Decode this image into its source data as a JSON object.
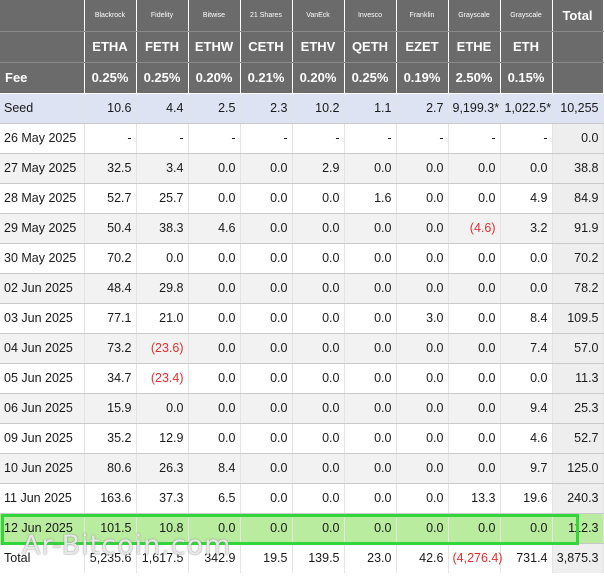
{
  "issuers": [
    "Blackrock",
    "Fidelity",
    "Bitwise",
    "21 Shares",
    "VanEck",
    "Invesco",
    "Franklin",
    "Grayscale",
    "Grayscale"
  ],
  "total_label": "Total",
  "tickers": [
    "ETHA",
    "FETH",
    "ETHW",
    "CETH",
    "ETHV",
    "QETH",
    "EZET",
    "ETHE",
    "ETH"
  ],
  "fee_label": "Fee",
  "fees": [
    "0.25%",
    "0.25%",
    "0.20%",
    "0.21%",
    "0.20%",
    "0.25%",
    "0.19%",
    "2.50%",
    "0.15%"
  ],
  "rows": [
    {
      "label": "Seed",
      "values": [
        "10.6",
        "4.4",
        "2.5",
        "2.3",
        "10.2",
        "1.1",
        "2.7",
        "9,199.3*",
        "1,022.5*"
      ],
      "total": "10,255",
      "neg": []
    },
    {
      "label": "26 May 2025",
      "values": [
        "-",
        "-",
        "-",
        "-",
        "-",
        "-",
        "-",
        "-",
        "-"
      ],
      "total": "0.0",
      "neg": []
    },
    {
      "label": "27 May 2025",
      "values": [
        "32.5",
        "3.4",
        "0.0",
        "0.0",
        "2.9",
        "0.0",
        "0.0",
        "0.0",
        "0.0"
      ],
      "total": "38.8",
      "neg": []
    },
    {
      "label": "28 May 2025",
      "values": [
        "52.7",
        "25.7",
        "0.0",
        "0.0",
        "0.0",
        "1.6",
        "0.0",
        "0.0",
        "4.9"
      ],
      "total": "84.9",
      "neg": []
    },
    {
      "label": "29 May 2025",
      "values": [
        "50.4",
        "38.3",
        "4.6",
        "0.0",
        "0.0",
        "0.0",
        "0.0",
        "(4.6)",
        "3.2"
      ],
      "total": "91.9",
      "neg": [
        7
      ]
    },
    {
      "label": "30 May 2025",
      "values": [
        "70.2",
        "0.0",
        "0.0",
        "0.0",
        "0.0",
        "0.0",
        "0.0",
        "0.0",
        "0.0"
      ],
      "total": "70.2",
      "neg": []
    },
    {
      "label": "02 Jun 2025",
      "values": [
        "48.4",
        "29.8",
        "0.0",
        "0.0",
        "0.0",
        "0.0",
        "0.0",
        "0.0",
        "0.0"
      ],
      "total": "78.2",
      "neg": []
    },
    {
      "label": "03 Jun 2025",
      "values": [
        "77.1",
        "21.0",
        "0.0",
        "0.0",
        "0.0",
        "0.0",
        "3.0",
        "0.0",
        "8.4"
      ],
      "total": "109.5",
      "neg": []
    },
    {
      "label": "04 Jun 2025",
      "values": [
        "73.2",
        "(23.6)",
        "0.0",
        "0.0",
        "0.0",
        "0.0",
        "0.0",
        "0.0",
        "7.4"
      ],
      "total": "57.0",
      "neg": [
        1
      ]
    },
    {
      "label": "05 Jun 2025",
      "values": [
        "34.7",
        "(23.4)",
        "0.0",
        "0.0",
        "0.0",
        "0.0",
        "0.0",
        "0.0",
        "0.0"
      ],
      "total": "11.3",
      "neg": [
        1
      ]
    },
    {
      "label": "06 Jun 2025",
      "values": [
        "15.9",
        "0.0",
        "0.0",
        "0.0",
        "0.0",
        "0.0",
        "0.0",
        "0.0",
        "9.4"
      ],
      "total": "25.3",
      "neg": []
    },
    {
      "label": "09 Jun 2025",
      "values": [
        "35.2",
        "12.9",
        "0.0",
        "0.0",
        "0.0",
        "0.0",
        "0.0",
        "0.0",
        "4.6"
      ],
      "total": "52.7",
      "neg": []
    },
    {
      "label": "10 Jun 2025",
      "values": [
        "80.6",
        "26.3",
        "8.4",
        "0.0",
        "0.0",
        "0.0",
        "0.0",
        "0.0",
        "9.7"
      ],
      "total": "125.0",
      "neg": []
    },
    {
      "label": "11 Jun 2025",
      "values": [
        "163.6",
        "37.3",
        "6.5",
        "0.0",
        "0.0",
        "0.0",
        "0.0",
        "13.3",
        "19.6"
      ],
      "total": "240.3",
      "neg": []
    },
    {
      "label": "12 Jun 2025",
      "values": [
        "101.5",
        "10.8",
        "0.0",
        "0.0",
        "0.0",
        "0.0",
        "0.0",
        "0.0",
        "0.0"
      ],
      "total": "112.3",
      "neg": []
    }
  ],
  "highlighted_row": "12 Jun 2025",
  "total_row": {
    "label": "Total",
    "values": [
      "5,235.6",
      "1,617.5",
      "342.9",
      "19.5",
      "139.5",
      "23.0",
      "42.6",
      "(4,276.4)",
      "731.4"
    ],
    "total": "3,875.3",
    "neg": [
      7
    ]
  },
  "watermark": "Ar-Bitcoin.com",
  "colors": {
    "header_bg": "#6b6b6b",
    "seed_bg": "#dde3f2",
    "negative": "#e0302e",
    "highlight_bg": "#b9ec9e",
    "highlight_border": "#33d63a"
  }
}
